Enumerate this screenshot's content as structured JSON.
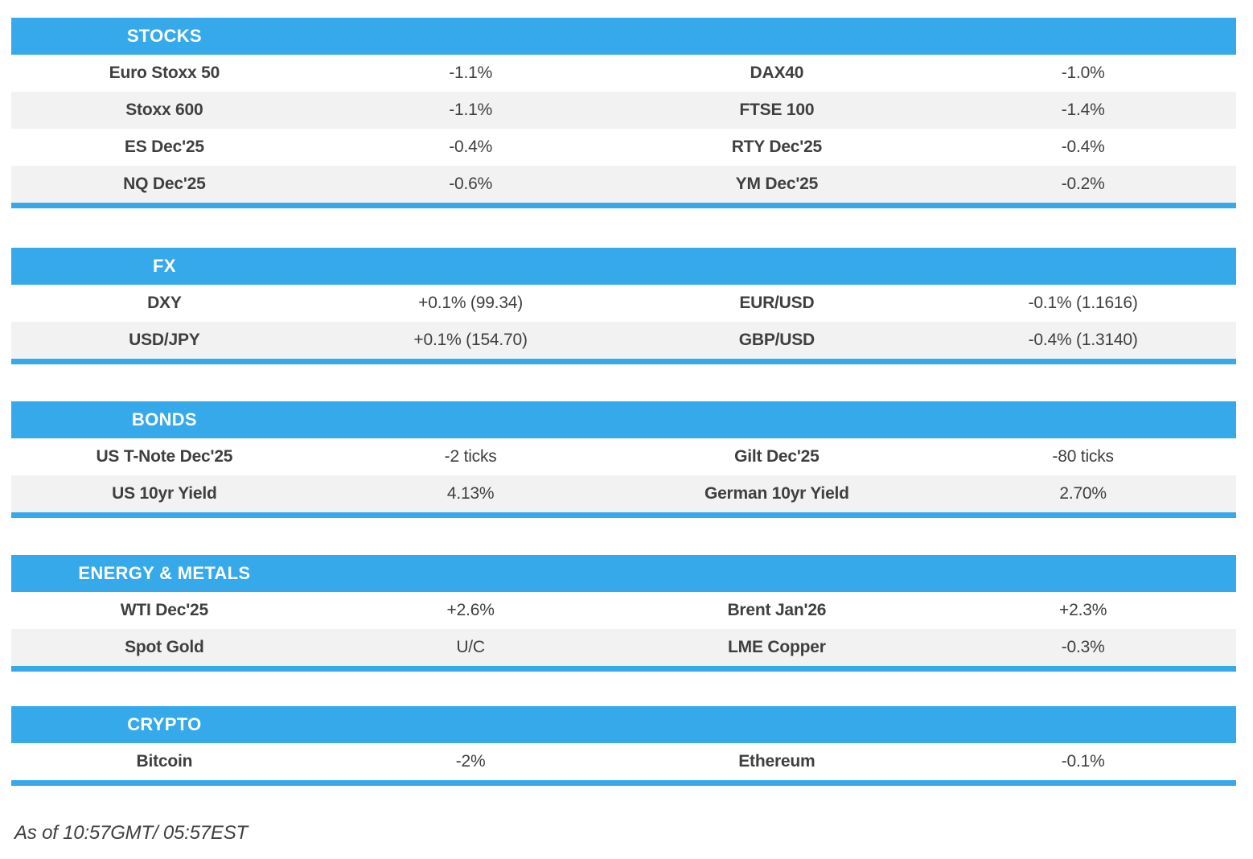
{
  "colors": {
    "accent": "#35a9ea",
    "stripe": "#f2f2f2",
    "text": "#3e3f41",
    "header_text": "#ffffff"
  },
  "tables": [
    {
      "title": "STOCKS",
      "rows": [
        [
          "Euro Stoxx 50",
          "-1.1%",
          "DAX40",
          "-1.0%"
        ],
        [
          "Stoxx 600",
          "-1.1%",
          "FTSE 100",
          "-1.4%"
        ],
        [
          "ES Dec'25",
          "-0.4%",
          "RTY Dec'25",
          "-0.4%"
        ],
        [
          "NQ Dec'25",
          "-0.6%",
          "YM Dec'25",
          "-0.2%"
        ]
      ]
    },
    {
      "title": "FX",
      "rows": [
        [
          "DXY",
          "+0.1% (99.34)",
          "EUR/USD",
          "-0.1% (1.1616)"
        ],
        [
          "USD/JPY",
          "+0.1% (154.70)",
          "GBP/USD",
          "-0.4% (1.3140)"
        ]
      ]
    },
    {
      "title": "BONDS",
      "rows": [
        [
          "US T-Note Dec'25",
          "-2 ticks",
          "Gilt Dec'25",
          "-80 ticks"
        ],
        [
          "US 10yr Yield",
          "4.13%",
          "German 10yr Yield",
          "2.70%"
        ]
      ]
    },
    {
      "title": "ENERGY & METALS",
      "rows": [
        [
          "WTI Dec'25",
          "+2.6%",
          "Brent Jan'26",
          "+2.3%"
        ],
        [
          "Spot Gold",
          "U/C",
          "LME Copper",
          "-0.3%"
        ]
      ]
    },
    {
      "title": "CRYPTO",
      "rows": [
        [
          "Bitcoin",
          "-2%",
          "Ethereum",
          "-0.1%"
        ]
      ]
    }
  ],
  "footer": {
    "timestamp": "As of 10:57GMT/ 05:57EST"
  }
}
